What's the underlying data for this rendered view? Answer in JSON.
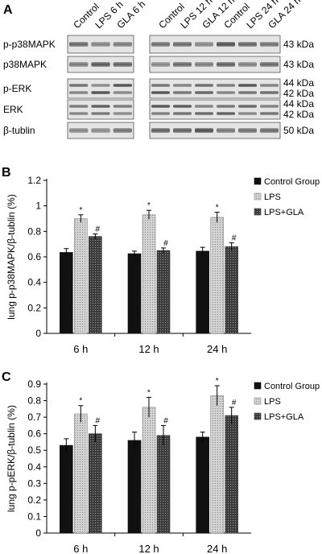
{
  "blot": {
    "panel_label": "A",
    "left_lanes": [
      "Control",
      "LPS 6 h",
      "GLA 6 h"
    ],
    "right_lanes": [
      "Control",
      "LPS 12 h",
      "GLA 12 h",
      "Control",
      "LPS 24 h",
      "GLA 24 h"
    ],
    "rows": [
      {
        "name": "p-p38MAPK",
        "kda": [
          "43 kDa"
        ]
      },
      {
        "name": "p38MAPK",
        "kda": [
          "43 kDa"
        ]
      },
      {
        "name": "p-ERK",
        "kda": [
          "44 kDa",
          "42 kDa"
        ]
      },
      {
        "name": "ERK",
        "kda": [
          "44 kDa",
          "42 kDa"
        ]
      },
      {
        "name": "β-tublin",
        "kda": [
          "50 kDa"
        ]
      }
    ]
  },
  "chart_data": [
    {
      "panel_label": "B",
      "type": "bar",
      "categories": [
        "6 h",
        "12 h",
        "24 h"
      ],
      "ylabel": "lung p-p38MAPK/β-tublin (%)",
      "ylim": [
        0,
        1.2
      ],
      "yticks": [
        0,
        0.2,
        0.4,
        0.6,
        0.8,
        1,
        1.2
      ],
      "ytick_labels": [
        "0",
        "0.2",
        "0.4",
        "0.6",
        "0.8",
        "1",
        "1.2"
      ],
      "legend_position": "top-right",
      "series": [
        {
          "name": "Control Group",
          "pattern": "solid",
          "color": "#111111",
          "values": [
            0.635,
            0.625,
            0.645
          ],
          "errors": [
            0.03,
            0.02,
            0.03
          ],
          "marks": [
            "",
            "",
            ""
          ]
        },
        {
          "name": "LPS",
          "pattern": "light",
          "color": "#bdbdbd",
          "values": [
            0.9,
            0.93,
            0.91
          ],
          "errors": [
            0.03,
            0.035,
            0.04
          ],
          "marks": [
            "*",
            "*",
            "*"
          ]
        },
        {
          "name": "LPS+GLA",
          "pattern": "dark-dots",
          "color": "#555555",
          "values": [
            0.76,
            0.65,
            0.68
          ],
          "errors": [
            0.02,
            0.02,
            0.03
          ],
          "marks": [
            "#",
            "#",
            "#"
          ]
        }
      ]
    },
    {
      "panel_label": "C",
      "type": "bar",
      "categories": [
        "6 h",
        "12 h",
        "24 h"
      ],
      "ylabel": "lung p-pERK/β-tublin (%)",
      "ylim": [
        0,
        0.9
      ],
      "yticks": [
        0,
        0.1,
        0.2,
        0.3,
        0.4,
        0.5,
        0.6,
        0.7,
        0.8,
        0.9
      ],
      "ytick_labels": [
        "0",
        "0.1",
        "0.2",
        "0.3",
        "0.4",
        "0.5",
        "0.6",
        "0.7",
        "0.8",
        "0.9"
      ],
      "legend_position": "top-right",
      "series": [
        {
          "name": "Control Group",
          "pattern": "solid",
          "color": "#111111",
          "values": [
            0.53,
            0.56,
            0.58
          ],
          "errors": [
            0.04,
            0.05,
            0.03
          ],
          "marks": [
            "",
            "",
            ""
          ]
        },
        {
          "name": "LPS",
          "pattern": "light",
          "color": "#bdbdbd",
          "values": [
            0.72,
            0.76,
            0.83
          ],
          "errors": [
            0.05,
            0.06,
            0.06
          ],
          "marks": [
            "*",
            "*",
            "*"
          ]
        },
        {
          "name": "LPS+GLA",
          "pattern": "dark-dots",
          "color": "#555555",
          "values": [
            0.6,
            0.59,
            0.71
          ],
          "errors": [
            0.05,
            0.06,
            0.05
          ],
          "marks": [
            "#",
            "#",
            "#"
          ]
        }
      ]
    }
  ]
}
